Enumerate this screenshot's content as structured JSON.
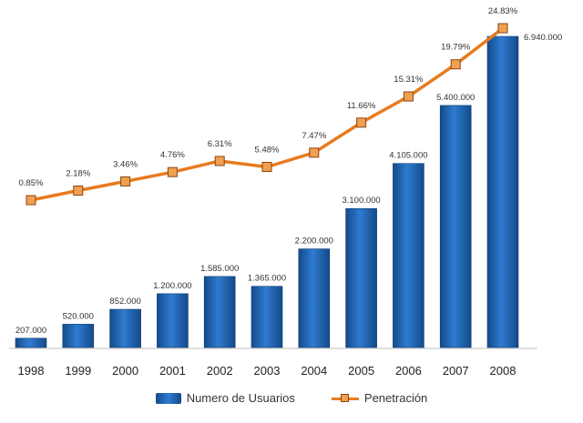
{
  "chart_data": {
    "type": "bar",
    "categories": [
      "1998",
      "1999",
      "2000",
      "2001",
      "2002",
      "2003",
      "2004",
      "2005",
      "2006",
      "2007",
      "2008"
    ],
    "series": [
      {
        "name": "Numero de Usuarios",
        "type": "bar",
        "values": [
          207000,
          520000,
          852000,
          1200000,
          1585000,
          1365000,
          2200000,
          3100000,
          4105000,
          5400000,
          6940000
        ],
        "labels": [
          "207.000",
          "520.000",
          "852.000",
          "1.200.000",
          "1.585.000",
          "1.365.000",
          "2.200.000",
          "3.100.000",
          "4.105.000",
          "5.400.000",
          "6.940.000"
        ]
      },
      {
        "name": "Penetración",
        "type": "line",
        "values": [
          0.85,
          2.18,
          3.46,
          4.76,
          6.31,
          5.48,
          7.47,
          11.66,
          15.31,
          19.79,
          24.83
        ],
        "labels": [
          "0.85%",
          "2.18%",
          "3.46%",
          "4.76%",
          "6.31%",
          "5.48%",
          "7.47%",
          "11.66%",
          "15.31%",
          "19.79%",
          "24.83%"
        ]
      }
    ],
    "legend_position": "bottom-center",
    "grid": false,
    "colors": {
      "bar": "#1f5fa8",
      "bar_light": "#4a8fd6",
      "line": "#e87b1e",
      "marker": "#f0a050"
    }
  }
}
